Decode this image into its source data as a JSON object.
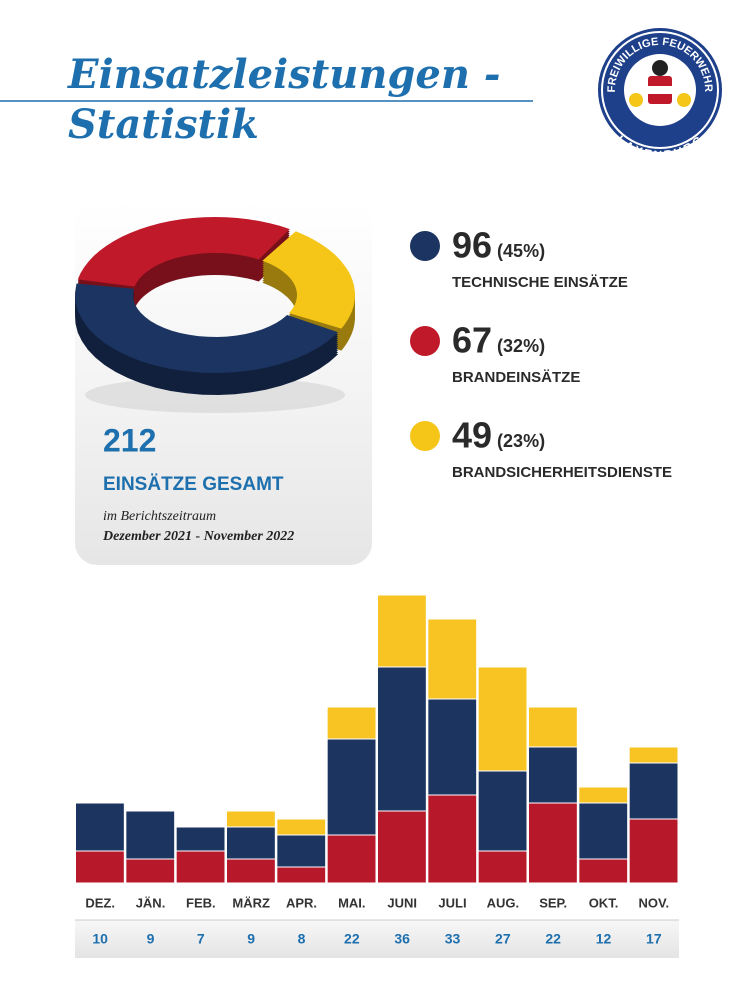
{
  "header": {
    "title_lines": [
      "Einsatzleistungen -",
      "Statistik"
    ]
  },
  "logo": {
    "top_text": "FREIWILLIGE FEUERWEHR",
    "bottom_text": "LAXENBURG"
  },
  "summary": {
    "total": 212,
    "label": "EINSÄTZE GESAMT",
    "period_intro": "im Berichtszeitraum",
    "period": "Dezember 2021 - November 2022"
  },
  "chart_data": [
    {
      "type": "pie",
      "categories": [
        "TECHNISCHE EINSÄTZE",
        "BRANDEINSÄTZE",
        "BRANDSICHERHEITSDIENSTE"
      ],
      "values": [
        96,
        67,
        49
      ],
      "percent_labels": [
        "(45%)",
        "(32%)",
        "(23%)"
      ],
      "colors": [
        "#1c3461",
        "#c0192a",
        "#f5c518"
      ]
    },
    {
      "type": "bar",
      "stacked": true,
      "categories": [
        "DEZ.",
        "JÄN.",
        "FEB.",
        "MÄRZ",
        "APR.",
        "MAI.",
        "JUNI",
        "JULI",
        "AUG.",
        "SEP.",
        "OKT.",
        "NOV."
      ],
      "series": [
        {
          "color": "#b8192a",
          "values": [
            4,
            3,
            4,
            3,
            2,
            6,
            9,
            11,
            4,
            10,
            3,
            8
          ]
        },
        {
          "color": "#1b3560",
          "values": [
            6,
            6,
            3,
            4,
            4,
            12,
            18,
            12,
            10,
            7,
            7,
            7
          ]
        },
        {
          "color": "#f7c424",
          "values": [
            0,
            0,
            0,
            2,
            2,
            4,
            9,
            10,
            13,
            5,
            2,
            2
          ]
        }
      ],
      "totals": [
        10,
        9,
        7,
        9,
        8,
        22,
        36,
        33,
        27,
        22,
        12,
        17
      ]
    }
  ]
}
